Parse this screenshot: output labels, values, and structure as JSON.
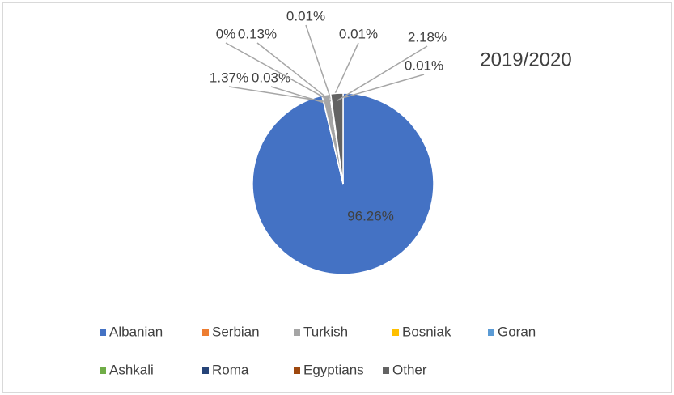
{
  "chart_data": {
    "type": "pie",
    "title": "2019/2020",
    "categories": [
      "Albanian",
      "Serbian",
      "Turkish",
      "Bosniak",
      "Goran",
      "Ashkali",
      "Roma",
      "Egyptians",
      "Other"
    ],
    "values": [
      96.26,
      0.03,
      1.37,
      0,
      0.13,
      0.01,
      0.01,
      0.01,
      2.18
    ],
    "value_labels": [
      "96.26%",
      "0.03%",
      "1.37%",
      "0%",
      "0.13%",
      "0.01%",
      "0.01%",
      "0.01%",
      "2.18%"
    ],
    "colors": [
      "#4472c4",
      "#ed7d31",
      "#a5a5a5",
      "#ffc000",
      "#5b9bd5",
      "#70ad47",
      "#264478",
      "#9e480e",
      "#636363"
    ],
    "legend": "bottom"
  }
}
